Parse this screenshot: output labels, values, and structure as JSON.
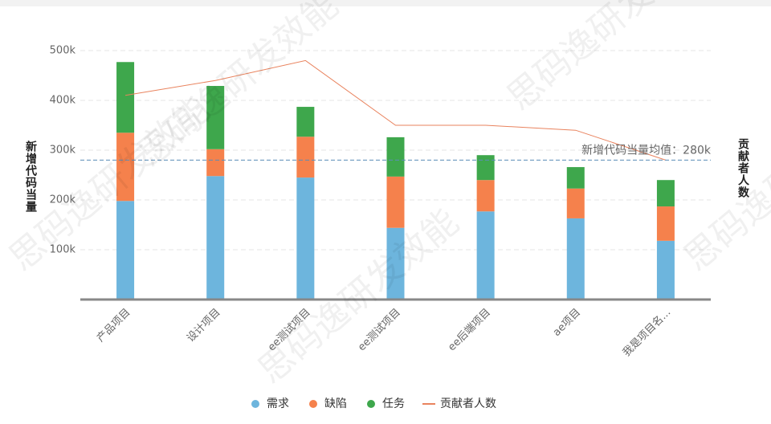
{
  "chart_data": {
    "type": "bar",
    "stacked": true,
    "ylabel": "新增代码当量",
    "y2label": "贡献者人数",
    "categories": [
      "产品项目",
      "设计项目",
      "ee测试项目",
      "ee测试项目",
      "ee后端项目",
      "ae项目",
      "我是项目名..."
    ],
    "series": [
      {
        "name": "需求",
        "color": "#6db5dd",
        "values": [
          198000,
          248000,
          245000,
          144000,
          177000,
          163000,
          118000
        ]
      },
      {
        "name": "缺陷",
        "color": "#f5814c",
        "values": [
          137000,
          54000,
          82000,
          103000,
          63000,
          60000,
          69000
        ]
      },
      {
        "name": "任务",
        "color": "#3ea74c",
        "values": [
          142000,
          127000,
          60000,
          79000,
          50000,
          43000,
          53000
        ]
      },
      {
        "name": "贡献者人数",
        "type": "line",
        "axis": "y2",
        "color": "#e9835e",
        "values": [
          41,
          44,
          48,
          35,
          35,
          34,
          28
        ]
      }
    ],
    "ylim": [
      0,
      500000
    ],
    "yticks": [
      {
        "value": 100000,
        "label": "100k"
      },
      {
        "value": 200000,
        "label": "200k"
      },
      {
        "value": 300000,
        "label": "300k"
      },
      {
        "value": 400000,
        "label": "400k"
      },
      {
        "value": 500000,
        "label": "500k"
      }
    ],
    "y2lim": [
      0,
      50
    ],
    "grid": true,
    "mean_line": {
      "value": 280000,
      "label": "新增代码当量均值：280k",
      "color": "#5b8db8"
    },
    "legend": "bottom",
    "watermark": "思码逸研发效能"
  }
}
